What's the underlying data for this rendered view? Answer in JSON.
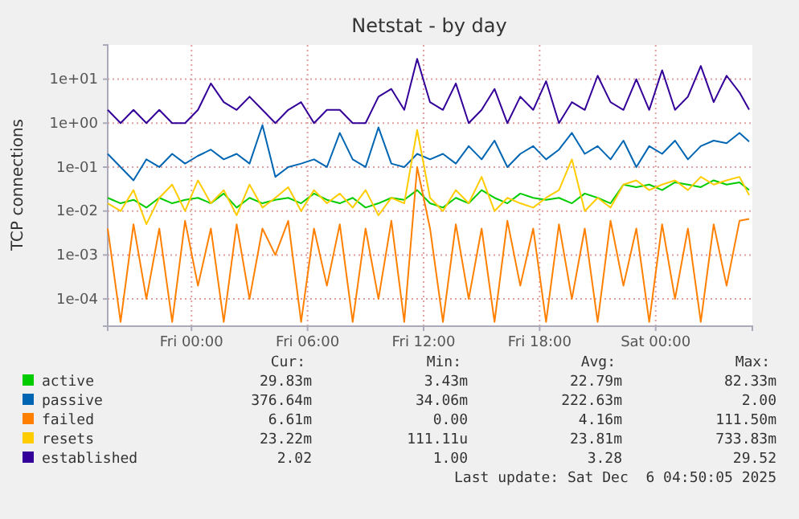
{
  "chart_data": {
    "type": "line",
    "title": "Netstat - by day",
    "ylabel": "TCP connections",
    "x": [
      "2025-12-04T19:40",
      "2025-12-04T20:20",
      "2025-12-04T21:00",
      "2025-12-04T21:40",
      "2025-12-04T22:20",
      "2025-12-04T23:00",
      "2025-12-04T23:40",
      "2025-12-05T00:20",
      "2025-12-05T01:00",
      "2025-12-05T01:40",
      "2025-12-05T02:20",
      "2025-12-05T03:00",
      "2025-12-05T03:40",
      "2025-12-05T04:20",
      "2025-12-05T05:00",
      "2025-12-05T05:40",
      "2025-12-05T06:20",
      "2025-12-05T07:00",
      "2025-12-05T07:40",
      "2025-12-05T08:20",
      "2025-12-05T09:00",
      "2025-12-05T09:40",
      "2025-12-05T10:20",
      "2025-12-05T11:00",
      "2025-12-05T11:40",
      "2025-12-05T12:20",
      "2025-12-05T13:00",
      "2025-12-05T13:40",
      "2025-12-05T14:20",
      "2025-12-05T15:00",
      "2025-12-05T15:40",
      "2025-12-05T16:20",
      "2025-12-05T17:00",
      "2025-12-05T17:40",
      "2025-12-05T18:20",
      "2025-12-05T19:00",
      "2025-12-05T19:40",
      "2025-12-05T20:20",
      "2025-12-05T21:00",
      "2025-12-05T21:40",
      "2025-12-05T22:20",
      "2025-12-05T23:00",
      "2025-12-05T23:40",
      "2025-12-06T00:20",
      "2025-12-06T01:00",
      "2025-12-06T01:40",
      "2025-12-06T02:20",
      "2025-12-06T03:00",
      "2025-12-06T03:40",
      "2025-12-06T04:20",
      "2025-12-06T04:50"
    ],
    "series": [
      {
        "name": "active",
        "color": "#00cc00",
        "values": [
          0.02,
          0.015,
          0.018,
          0.012,
          0.02,
          0.015,
          0.018,
          0.02,
          0.015,
          0.025,
          0.012,
          0.02,
          0.015,
          0.018,
          0.02,
          0.015,
          0.025,
          0.018,
          0.015,
          0.02,
          0.012,
          0.015,
          0.02,
          0.018,
          0.03,
          0.015,
          0.012,
          0.02,
          0.015,
          0.03,
          0.02,
          0.015,
          0.025,
          0.02,
          0.018,
          0.02,
          0.015,
          0.025,
          0.02,
          0.015,
          0.04,
          0.035,
          0.04,
          0.03,
          0.045,
          0.04,
          0.035,
          0.05,
          0.04,
          0.045,
          0.03
        ]
      },
      {
        "name": "passive",
        "color": "#0066b3",
        "values": [
          0.2,
          0.1,
          0.05,
          0.15,
          0.1,
          0.2,
          0.12,
          0.18,
          0.25,
          0.15,
          0.2,
          0.12,
          0.9,
          0.06,
          0.1,
          0.12,
          0.15,
          0.1,
          0.6,
          0.15,
          0.1,
          0.8,
          0.12,
          0.1,
          0.2,
          0.15,
          0.2,
          0.12,
          0.3,
          0.15,
          0.4,
          0.1,
          0.2,
          0.3,
          0.15,
          0.25,
          0.6,
          0.2,
          0.3,
          0.15,
          0.4,
          0.1,
          0.3,
          0.2,
          0.4,
          0.15,
          0.3,
          0.4,
          0.35,
          0.6,
          0.38
        ]
      },
      {
        "name": "failed",
        "color": "#ff8000",
        "values": [
          0.004,
          3e-05,
          0.005,
          0.0001,
          0.004,
          3e-05,
          0.006,
          0.0002,
          0.004,
          3e-05,
          0.005,
          0.0001,
          0.004,
          0.001,
          0.006,
          3e-05,
          0.004,
          0.0002,
          0.005,
          3e-05,
          0.004,
          0.0001,
          0.006,
          3e-05,
          0.1,
          0.004,
          3e-05,
          0.005,
          0.0001,
          0.004,
          3e-05,
          0.006,
          0.0002,
          0.004,
          3e-05,
          0.005,
          0.0001,
          0.004,
          3e-05,
          0.006,
          0.0002,
          0.004,
          3e-05,
          0.005,
          0.0001,
          0.004,
          3e-05,
          0.005,
          0.0002,
          0.006,
          0.0066
        ]
      },
      {
        "name": "resets",
        "color": "#ffcc00",
        "values": [
          0.015,
          0.01,
          0.03,
          0.005,
          0.02,
          0.04,
          0.01,
          0.05,
          0.015,
          0.03,
          0.008,
          0.04,
          0.012,
          0.02,
          0.035,
          0.01,
          0.03,
          0.015,
          0.025,
          0.012,
          0.03,
          0.008,
          0.02,
          0.015,
          0.7,
          0.02,
          0.01,
          0.03,
          0.015,
          0.06,
          0.01,
          0.02,
          0.015,
          0.012,
          0.02,
          0.03,
          0.15,
          0.01,
          0.02,
          0.012,
          0.04,
          0.05,
          0.03,
          0.04,
          0.05,
          0.03,
          0.06,
          0.04,
          0.05,
          0.06,
          0.023
        ]
      },
      {
        "name": "established",
        "color": "#330099",
        "values": [
          2,
          1,
          2,
          1,
          2,
          1,
          1,
          2,
          8,
          3,
          2,
          4,
          2,
          1,
          2,
          3,
          1,
          2,
          2,
          1,
          1,
          4,
          6,
          2,
          29,
          3,
          2,
          8,
          1,
          2,
          6,
          1,
          4,
          2,
          9,
          1,
          3,
          2,
          12,
          3,
          2,
          10,
          2,
          16,
          2,
          4,
          20,
          3,
          12,
          5,
          2.02
        ]
      }
    ],
    "xlim": [
      "2025-12-04T19:40",
      "2025-12-06T05:00"
    ],
    "xticks": [
      {
        "value": "2025-12-05T00:00",
        "label": "Fri 00:00"
      },
      {
        "value": "2025-12-05T06:00",
        "label": "Fri 06:00"
      },
      {
        "value": "2025-12-05T12:00",
        "label": "Fri 12:00"
      },
      {
        "value": "2025-12-05T18:00",
        "label": "Fri 18:00"
      },
      {
        "value": "2025-12-06T00:00",
        "label": "Sat 00:00"
      }
    ],
    "ylim": [
      2.4e-05,
      60
    ],
    "yticks": [
      {
        "value": 0.0001,
        "label": "1e-04"
      },
      {
        "value": 0.001,
        "label": "1e-03"
      },
      {
        "value": 0.01,
        "label": "1e-02"
      },
      {
        "value": 0.1,
        "label": "1e-01"
      },
      {
        "value": 1,
        "label": "1e+00"
      },
      {
        "value": 10,
        "label": "1e+01"
      }
    ],
    "log": true,
    "grid": true,
    "legend": "bottom",
    "annotations": [
      "Cur:",
      "Min:",
      "Avg:",
      "Max:",
      "29.83m",
      "3.43m",
      "22.79m",
      "82.33m",
      "376.64m",
      "34.06m",
      "222.63m",
      "2.00",
      "6.61m",
      "0.00",
      "4.16m",
      "111.50m",
      "23.22m",
      "111.11u",
      "23.81m",
      "733.83m",
      "2.02",
      "1.00",
      "3.28",
      "29.52",
      "Last update: Sat Dec  6 04:50:05 2025"
    ]
  }
}
